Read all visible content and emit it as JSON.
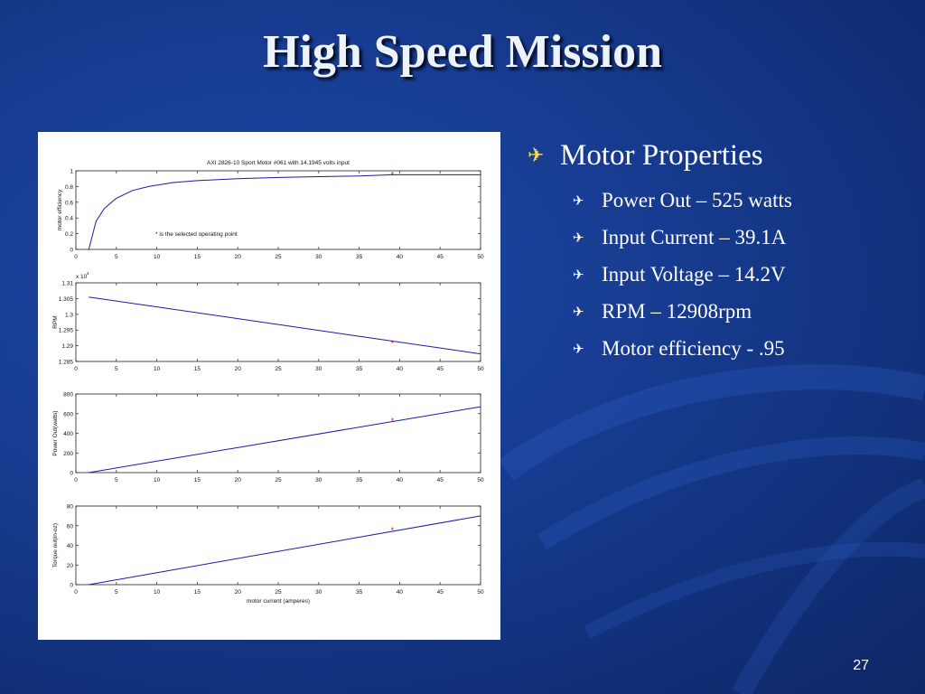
{
  "slide": {
    "title": "High Speed Mission",
    "page_number": "27"
  },
  "bullets": {
    "main": "Motor Properties",
    "main_icon": "airplane-icon",
    "items": [
      "Power Out – 525 watts",
      "Input Current – 39.1A",
      "Input Voltage – 14.2V",
      "RPM – 12908rpm",
      "Motor efficiency - .95"
    ],
    "item_icon": "airplane-icon"
  },
  "colors": {
    "background": "#163a8e",
    "title": "#eef2fa",
    "bullet_glyph": "#f5d94e",
    "curve": "#1a1aa0",
    "marker": "#d01010"
  },
  "chart_data": [
    {
      "type": "line",
      "title": "AXI  2826-10  Sport Motor #061 with 14.1945 volts input",
      "annotation": "* is the selected operating point",
      "xlabel": "",
      "ylabel": "motor efficiency",
      "xlim": [
        0,
        50
      ],
      "ylim": [
        0,
        1
      ],
      "xticks": [
        "0",
        "5",
        "10",
        "15",
        "20",
        "25",
        "30",
        "35",
        "40",
        "45",
        "50"
      ],
      "yticks": [
        "0",
        "0.2",
        "0.4",
        "0.6",
        "0.8",
        "1"
      ],
      "x": [
        1.6,
        2.5,
        3.5,
        5,
        7,
        9,
        12,
        15,
        20,
        25,
        30,
        35,
        39.1,
        45,
        50
      ],
      "y": [
        0.0,
        0.36,
        0.52,
        0.65,
        0.75,
        0.8,
        0.85,
        0.875,
        0.9,
        0.915,
        0.925,
        0.935,
        0.95,
        0.95,
        0.95
      ],
      "marker": {
        "x": 39.1,
        "y": 0.95,
        "symbol": "*"
      }
    },
    {
      "type": "line",
      "title": "",
      "xlabel": "",
      "ylabel": "RPM",
      "exponent_label": "x 10",
      "exponent": "4",
      "xlim": [
        0,
        50
      ],
      "ylim": [
        1.285,
        1.31
      ],
      "xticks": [
        "0",
        "5",
        "10",
        "15",
        "20",
        "25",
        "30",
        "35",
        "40",
        "45",
        "50"
      ],
      "yticks": [
        "1.285",
        "1.29",
        "1.295",
        "1.3",
        "1.305",
        "1.31"
      ],
      "x": [
        1.6,
        50
      ],
      "y": [
        1.3055,
        1.2874
      ],
      "marker": {
        "x": 39.1,
        "y": 1.2908,
        "symbol": "*"
      }
    },
    {
      "type": "line",
      "title": "",
      "xlabel": "",
      "ylabel": "Power Out(watts)",
      "xlim": [
        0,
        50
      ],
      "ylim": [
        0,
        800
      ],
      "xticks": [
        "0",
        "5",
        "10",
        "15",
        "20",
        "25",
        "30",
        "35",
        "40",
        "45",
        "50"
      ],
      "yticks": [
        "0",
        "200",
        "400",
        "600",
        "800"
      ],
      "x": [
        1.6,
        50
      ],
      "y": [
        0,
        670
      ],
      "marker": {
        "x": 39.1,
        "y": 525,
        "symbol": "*"
      }
    },
    {
      "type": "line",
      "title": "",
      "xlabel": "motor current (amperes)",
      "ylabel": "Torque out(in-oz)",
      "xlim": [
        0,
        50
      ],
      "ylim": [
        0,
        80
      ],
      "xticks": [
        "0",
        "5",
        "10",
        "15",
        "20",
        "25",
        "30",
        "35",
        "40",
        "45",
        "50"
      ],
      "yticks": [
        "0",
        "20",
        "40",
        "60",
        "80"
      ],
      "x": [
        1.6,
        50
      ],
      "y": [
        0,
        70
      ],
      "marker": {
        "x": 39.1,
        "y": 55,
        "symbol": "*"
      }
    }
  ]
}
